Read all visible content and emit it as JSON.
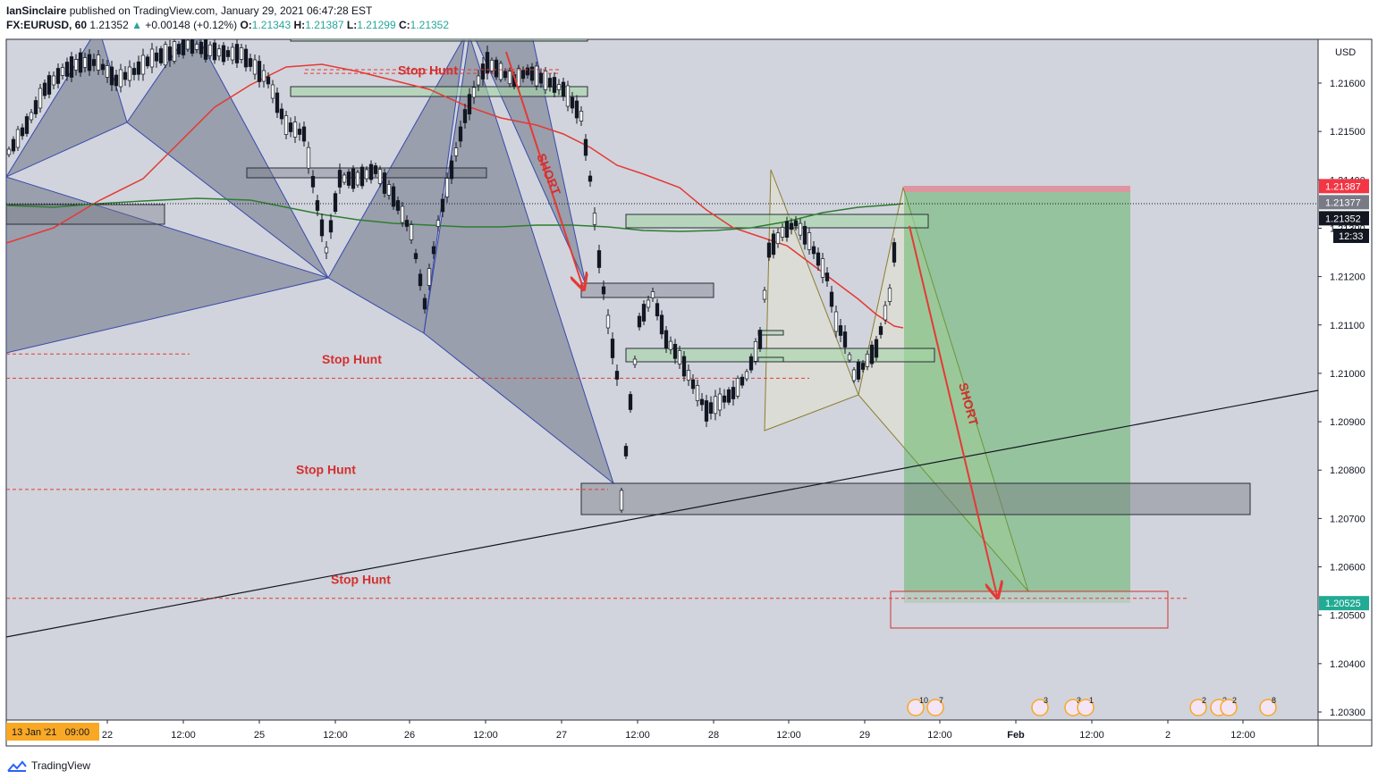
{
  "header": {
    "author": "IanSinclaire",
    "published": "published on TradingView.com, January 29, 2021 06:47:28 EST",
    "symbol": "FX:EURUSD, 60",
    "last": "1.21352",
    "change": "+0.00148 (+0.12%)",
    "o_label": "O:",
    "o": "1.21343",
    "h_label": "H:",
    "h": "1.21387",
    "l_label": "L:",
    "l": "1.21299",
    "c_label": "C:",
    "c": "1.21352"
  },
  "footer": {
    "brand": "TradingView"
  },
  "chart_data": {
    "type": "candlestick",
    "currency": "USD",
    "ylim": [
      1.2025,
      1.217
    ],
    "y_ticks": [
      "1.21600",
      "1.21500",
      "1.21400",
      "1.21300",
      "1.21200",
      "1.21100",
      "1.21000",
      "1.20900",
      "1.20800",
      "1.20700",
      "1.20600",
      "1.20500",
      "1.20400",
      "1.20300"
    ],
    "x_ticks": [
      "22",
      "12:00",
      "25",
      "12:00",
      "26",
      "12:00",
      "27",
      "12:00",
      "28",
      "12:00",
      "29",
      "12:00",
      "Feb",
      "12:00",
      "2",
      "12:00"
    ],
    "x_range_label": "13 Jan '21   09:00",
    "price_labels": [
      {
        "value": 1.21387,
        "text": "1.21387",
        "color": "#f23645"
      },
      {
        "value": 1.21377,
        "text": "1.21377",
        "color": "#787b86"
      },
      {
        "value": 1.21352,
        "text": "1.21352",
        "color": "#131722"
      },
      {
        "value": 1.20525,
        "text": "1.20525",
        "color": "#22ab94"
      }
    ],
    "countdown": "12:33",
    "annotations": [
      {
        "text": "Stop Hunt",
        "price": 1.21618
      },
      {
        "text": "Stop Hunt",
        "price": 1.2102
      },
      {
        "text": "Stop Hunt",
        "price": 1.20792
      },
      {
        "text": "Stop Hunt",
        "price": 1.20565
      },
      {
        "text": "SHORT",
        "price": 1.2145
      },
      {
        "text": "SHORT",
        "price": 1.209
      }
    ],
    "stop_hunt_levels": [
      1.2162,
      1.2104,
      1.2099,
      1.2076,
      1.20535
    ],
    "event_badges": [
      "10",
      "7",
      "3",
      "3",
      "1",
      "2",
      "2",
      "2",
      "8"
    ]
  }
}
